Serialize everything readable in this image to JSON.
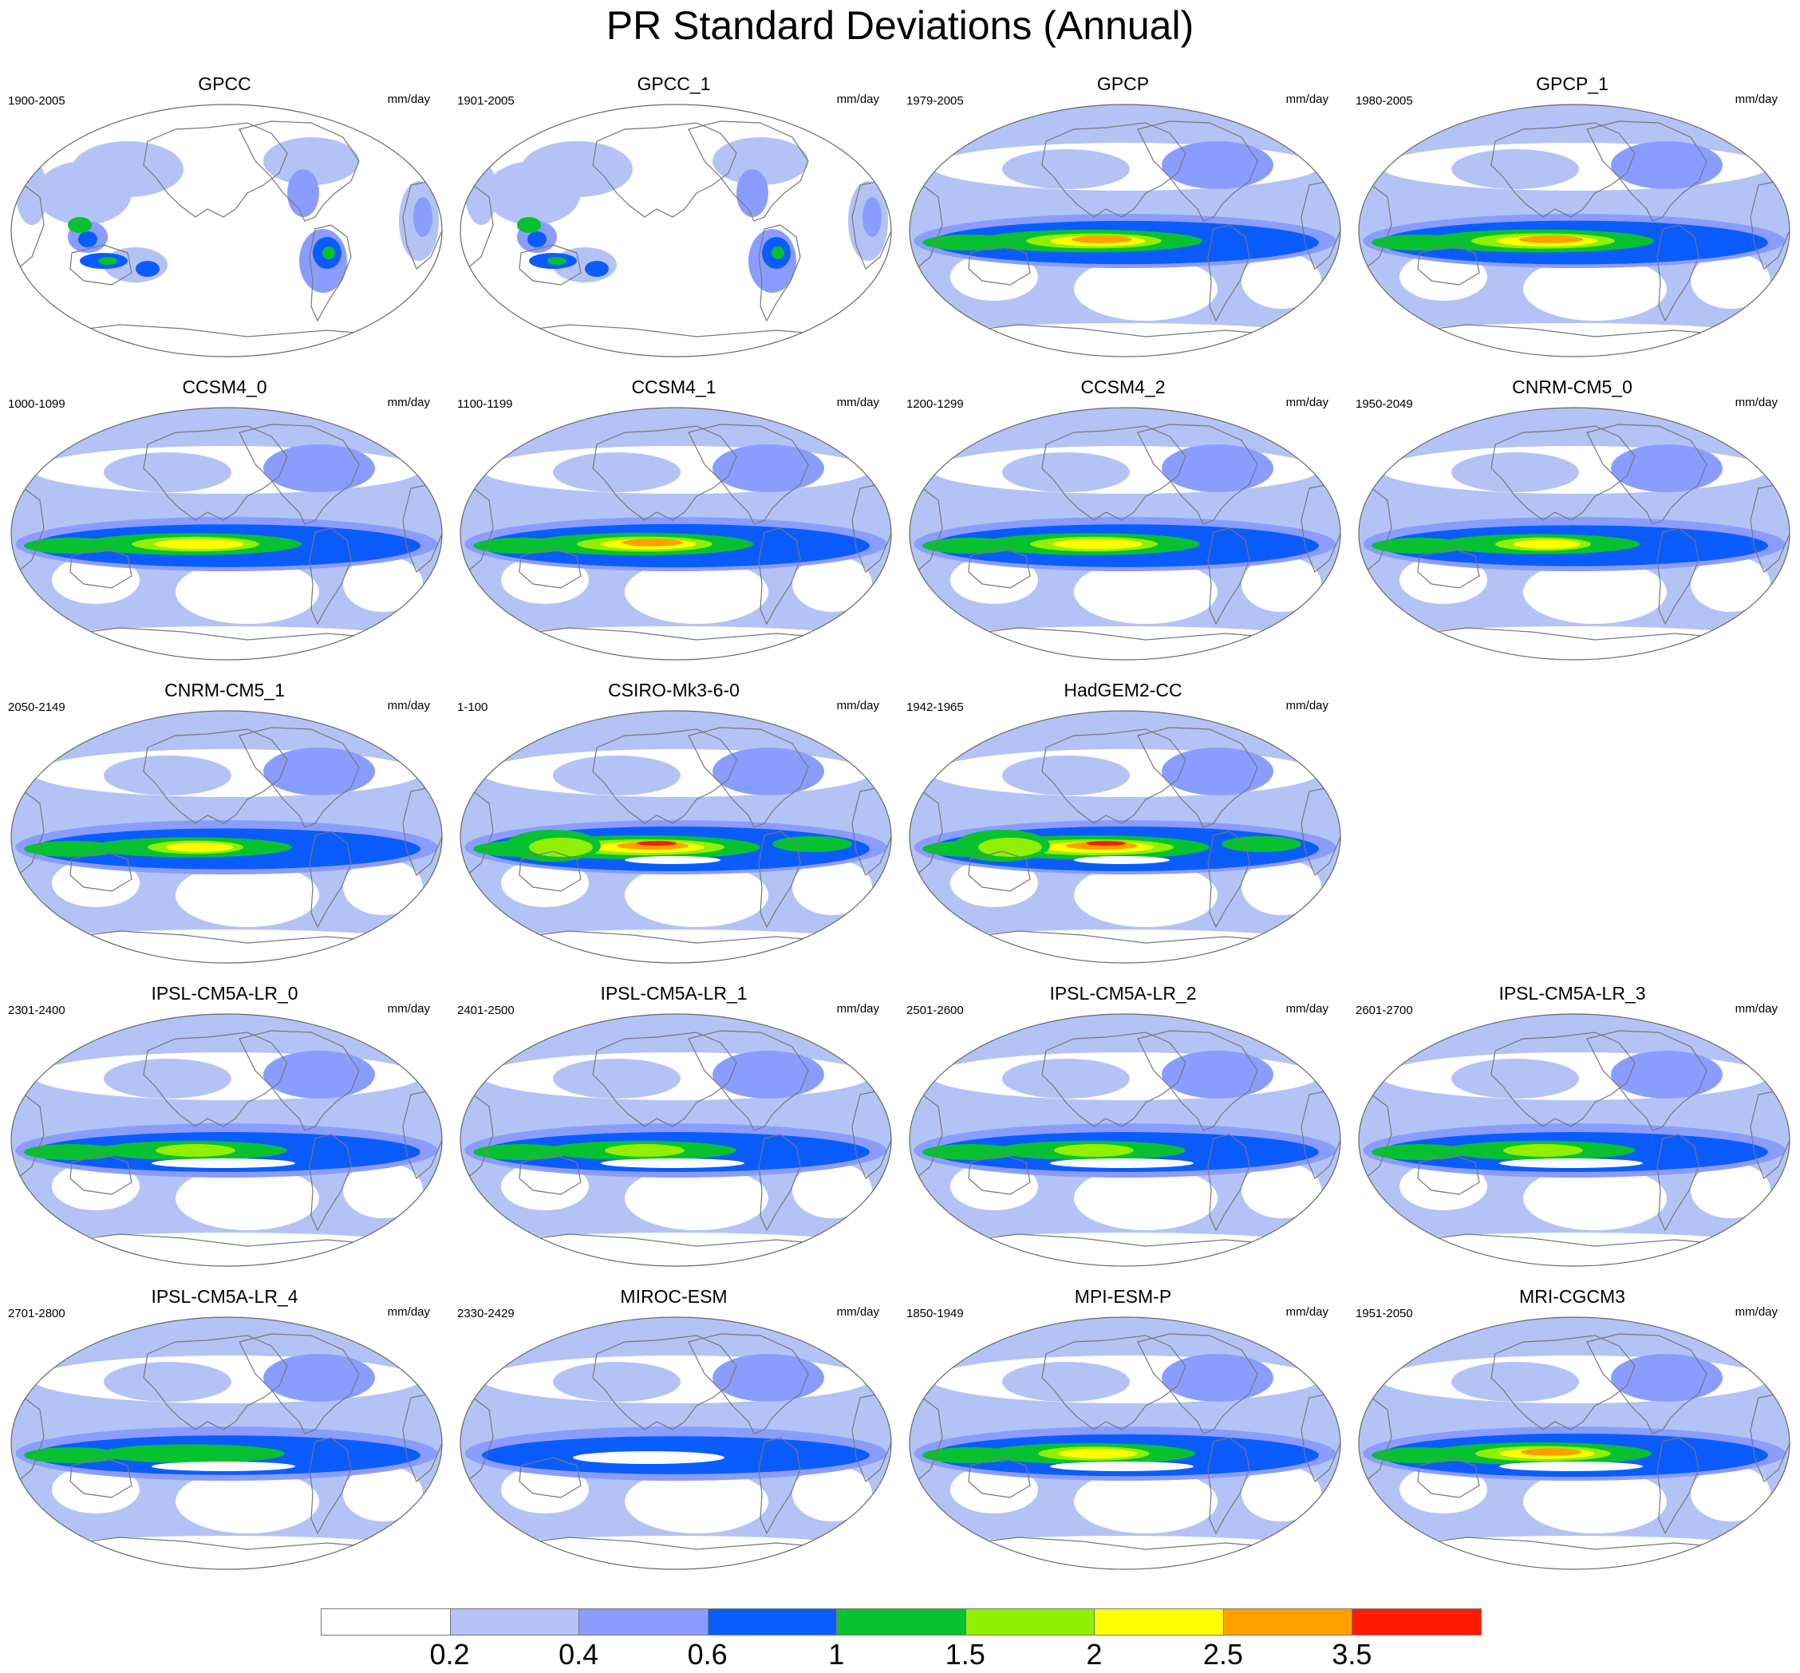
{
  "title": "PR Standard Deviations (Annual)",
  "units": "mm/day",
  "colorbar": {
    "labels": [
      "0.2",
      "0.4",
      "0.6",
      "1",
      "1.5",
      "2",
      "2.5",
      "3.5"
    ],
    "colors": [
      "#ffffff",
      "#b4c3f5",
      "#8a9dff",
      "#0b5cff",
      "#08c130",
      "#90f000",
      "#ffff00",
      "#ffa000",
      "#ff1a00"
    ]
  },
  "panels": [
    {
      "title": "GPCC",
      "years": "1900-2005",
      "style": "land",
      "intensity": 0.0
    },
    {
      "title": "GPCC_1",
      "years": "1901-2005",
      "style": "land",
      "intensity": 0.0
    },
    {
      "title": "GPCP",
      "years": "1979-2005",
      "style": "obs",
      "intensity": 0.85
    },
    {
      "title": "GPCP_1",
      "years": "1980-2005",
      "style": "obs",
      "intensity": 0.9
    },
    {
      "title": "CCSM4_0",
      "years": "1000-1099",
      "style": "model",
      "intensity": 0.8
    },
    {
      "title": "CCSM4_1",
      "years": "1100-1199",
      "style": "model",
      "intensity": 0.85
    },
    {
      "title": "CCSM4_2",
      "years": "1200-1299",
      "style": "model",
      "intensity": 0.8
    },
    {
      "title": "CNRM-CM5_0",
      "years": "1950-2049",
      "style": "model",
      "intensity": 0.6
    },
    {
      "title": "CNRM-CM5_1",
      "years": "2050-2149",
      "style": "model",
      "intensity": 0.6
    },
    {
      "title": "CSIRO-Mk3-6-0",
      "years": "1-100",
      "style": "strong",
      "intensity": 1.0
    },
    {
      "title": "HadGEM2-CC",
      "years": "1942-1965",
      "style": "strong",
      "intensity": 1.0
    },
    {
      "title": "IPSL-CM5A-LR_0",
      "years": "2301-2400",
      "style": "split",
      "intensity": 0.5
    },
    {
      "title": "IPSL-CM5A-LR_1",
      "years": "2401-2500",
      "style": "split",
      "intensity": 0.5
    },
    {
      "title": "IPSL-CM5A-LR_2",
      "years": "2501-2600",
      "style": "split",
      "intensity": 0.5
    },
    {
      "title": "IPSL-CM5A-LR_3",
      "years": "2601-2700",
      "style": "split",
      "intensity": 0.5
    },
    {
      "title": "IPSL-CM5A-LR_4",
      "years": "2701-2800",
      "style": "split",
      "intensity": 0.45
    },
    {
      "title": "MIROC-ESM",
      "years": "2330-2429",
      "style": "weak",
      "intensity": 0.3
    },
    {
      "title": "MPI-ESM-P",
      "years": "1850-1949",
      "style": "split",
      "intensity": 0.7
    },
    {
      "title": "MRI-CGCM3",
      "years": "1951-2050",
      "style": "split",
      "intensity": 0.85
    }
  ]
}
